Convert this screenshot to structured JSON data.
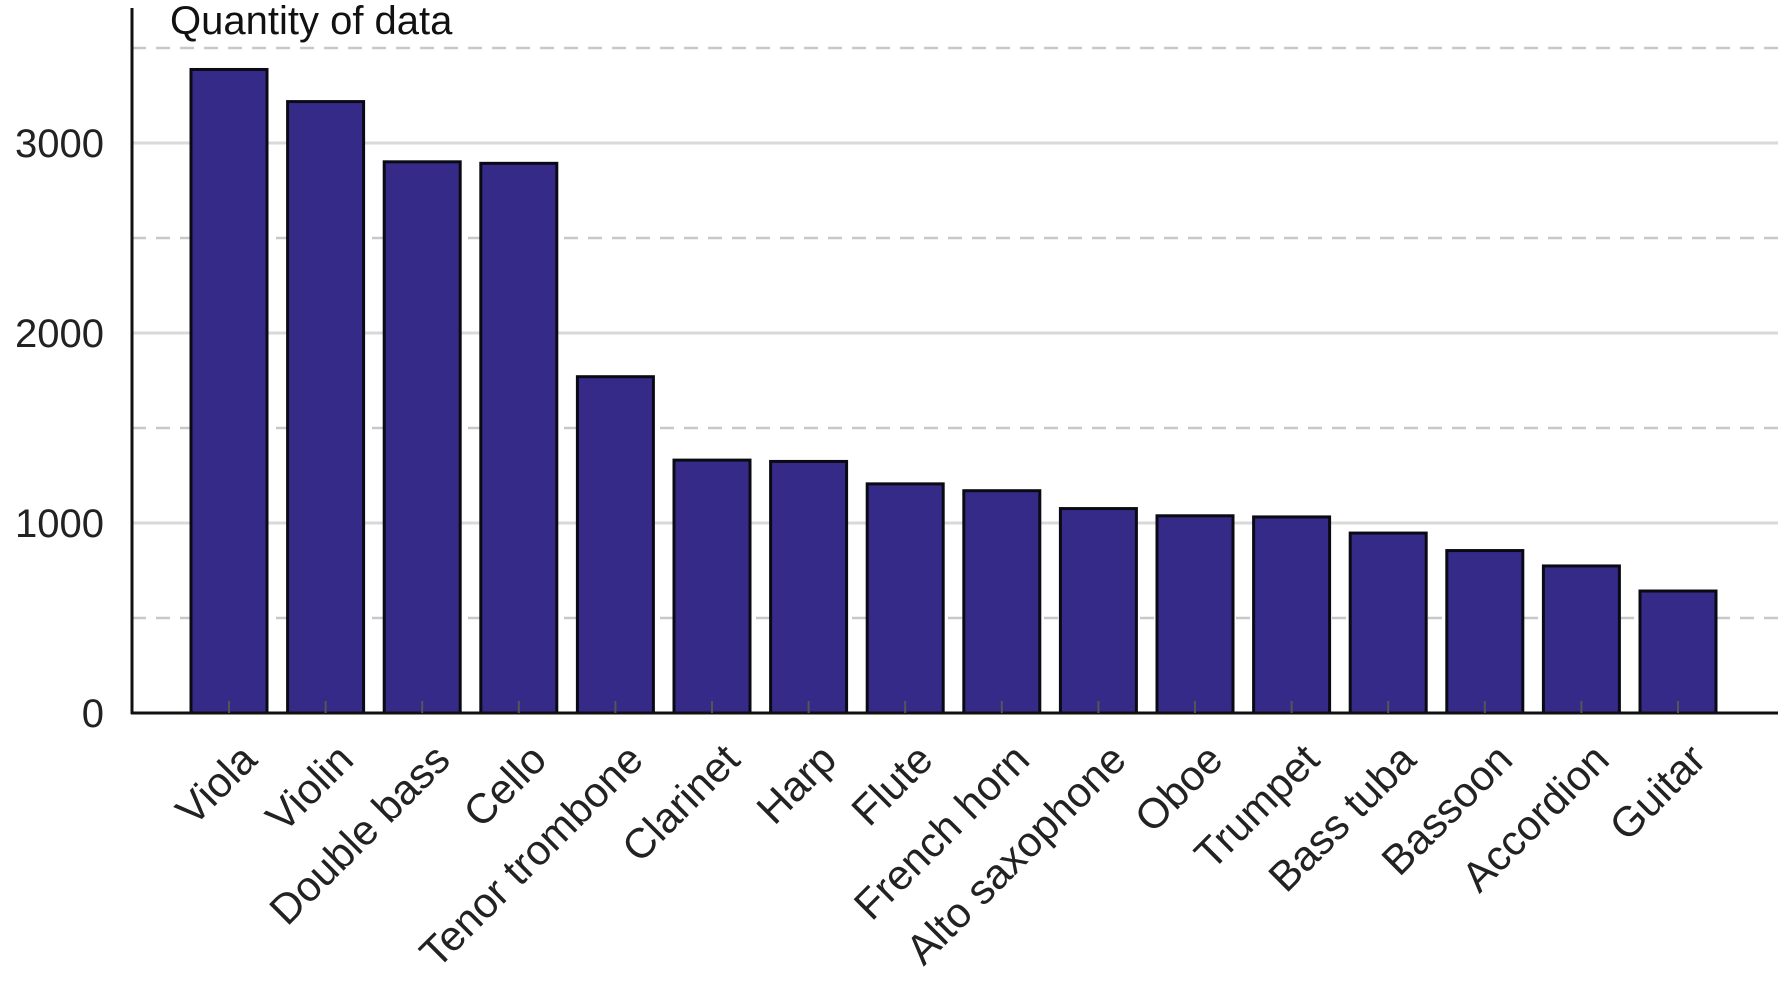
{
  "chart_data": {
    "type": "bar",
    "title": "Quantity of data",
    "xlabel": "",
    "ylabel": "",
    "categories": [
      "Viola",
      "Violin",
      "Double bass",
      "Cello",
      "Tenor trombone",
      "Clarinet",
      "Harp",
      "Flute",
      "French horn",
      "Alto saxophone",
      "Oboe",
      "Trumpet",
      "Bass tuba",
      "Bassoon",
      "Accordion",
      "Guitar"
    ],
    "values": [
      3387,
      3218,
      2901,
      2893,
      1770,
      1331,
      1324,
      1206,
      1170,
      1076,
      1038,
      1032,
      947,
      855,
      774,
      642
    ],
    "ylim": [
      0,
      3500
    ],
    "yticks": [
      0,
      1000,
      2000,
      3000
    ],
    "ytick_labels": [
      "0",
      "1000",
      "2000",
      "3000"
    ],
    "minor_gridlines": [
      500,
      1500,
      2500,
      3500
    ],
    "grid": true,
    "bar_color": "#352a87",
    "bar_edge_color": "#0a0a14"
  }
}
